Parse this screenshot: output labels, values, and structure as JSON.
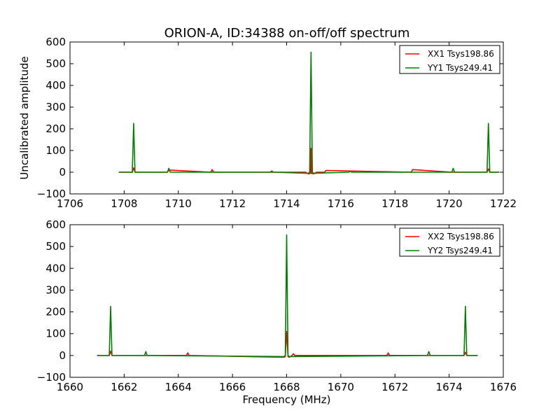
{
  "title": "ORION-A, ID:34388 on-off/off spectrum",
  "chart_data": [
    {
      "type": "line",
      "title": "ORION-A, ID:34388 on-off/off spectrum",
      "xlabel": "",
      "ylabel": "Uncalibrated amplitude",
      "xlim": [
        1706,
        1722
      ],
      "ylim": [
        -100,
        600
      ],
      "xticks": [
        "1706",
        "1708",
        "1710",
        "1712",
        "1714",
        "1716",
        "1718",
        "1720",
        "1722"
      ],
      "yticks": [
        "−100",
        "0",
        "100",
        "200",
        "300",
        "400",
        "500",
        "600"
      ],
      "legend_position": "top-right",
      "series": [
        {
          "name": "XX1 Tsys198.86",
          "color": "#ff0000",
          "x": [
            1707.8,
            1708.3,
            1708.35,
            1708.4,
            1709.6,
            1709.65,
            1711.2,
            1711.25,
            1711.3,
            1714.7,
            1714.8,
            1714.88,
            1714.9,
            1714.92,
            1715.0,
            1715.1,
            1715.4,
            1715.45,
            1718.6,
            1718.65,
            1720.1,
            1721.4,
            1721.45,
            1721.5,
            1721.85
          ],
          "y": [
            0,
            0,
            20,
            0,
            0,
            10,
            0,
            12,
            0,
            0,
            -8,
            -5,
            110,
            -5,
            -8,
            0,
            0,
            8,
            0,
            12,
            0,
            0,
            15,
            0,
            0
          ]
        },
        {
          "name": "YY1 Tsys249.41",
          "color": "#008000",
          "x": [
            1707.8,
            1708.3,
            1708.35,
            1708.4,
            1709.6,
            1709.65,
            1709.7,
            1713.4,
            1713.45,
            1713.5,
            1714.8,
            1714.85,
            1714.9,
            1714.95,
            1715.0,
            1716.3,
            1716.35,
            1716.4,
            1720.1,
            1720.15,
            1720.2,
            1721.4,
            1721.45,
            1721.5,
            1721.85
          ],
          "y": [
            0,
            0,
            225,
            0,
            0,
            18,
            0,
            0,
            6,
            0,
            -5,
            0,
            553,
            0,
            -5,
            0,
            5,
            0,
            0,
            18,
            0,
            0,
            225,
            0,
            0
          ]
        }
      ]
    },
    {
      "type": "line",
      "title": "",
      "xlabel": "Frequency (MHz)",
      "ylabel": "",
      "xlim": [
        1660,
        1676
      ],
      "ylim": [
        -100,
        600
      ],
      "xticks": [
        "1660",
        "1662",
        "1664",
        "1666",
        "1668",
        "1670",
        "1672",
        "1674",
        "1676"
      ],
      "yticks": [
        "−100",
        "0",
        "100",
        "200",
        "300",
        "400",
        "500",
        "600"
      ],
      "legend_position": "top-right",
      "series": [
        {
          "name": "XX2 Tsys198.86",
          "color": "#ff0000",
          "x": [
            1661.0,
            1661.45,
            1661.5,
            1661.55,
            1664.3,
            1664.35,
            1664.4,
            1667.9,
            1667.95,
            1668.0,
            1668.05,
            1668.1,
            1668.2,
            1668.25,
            1668.3,
            1671.7,
            1671.75,
            1671.8,
            1674.55,
            1674.6,
            1674.65,
            1675.05
          ],
          "y": [
            0,
            0,
            20,
            0,
            0,
            12,
            0,
            -8,
            -5,
            110,
            -5,
            -8,
            0,
            8,
            0,
            0,
            12,
            0,
            0,
            15,
            0,
            0
          ]
        },
        {
          "name": "YY2 Tsys249.41",
          "color": "#008000",
          "x": [
            1661.0,
            1661.45,
            1661.5,
            1661.55,
            1662.75,
            1662.8,
            1662.85,
            1667.9,
            1667.95,
            1668.0,
            1668.05,
            1668.1,
            1673.2,
            1673.25,
            1673.3,
            1674.55,
            1674.6,
            1674.65,
            1675.05
          ],
          "y": [
            0,
            0,
            225,
            0,
            0,
            18,
            0,
            -5,
            0,
            553,
            0,
            -5,
            0,
            18,
            0,
            0,
            225,
            0,
            0
          ]
        }
      ]
    }
  ]
}
